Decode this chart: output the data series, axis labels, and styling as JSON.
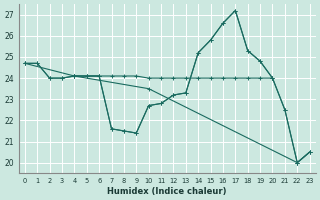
{
  "xlabel": "Humidex (Indice chaleur)",
  "bg_color": "#cce8e0",
  "grid_color": "#ffffff",
  "line_color": "#1a6b60",
  "xlim": [
    -0.5,
    23.5
  ],
  "ylim": [
    19.5,
    27.5
  ],
  "yticks": [
    20,
    21,
    22,
    23,
    24,
    25,
    26,
    27
  ],
  "xticks": [
    0,
    1,
    2,
    3,
    4,
    5,
    6,
    7,
    8,
    9,
    10,
    11,
    12,
    13,
    14,
    15,
    16,
    17,
    18,
    19,
    20,
    21,
    22,
    23
  ],
  "series": [
    {
      "x": [
        0,
        1,
        2,
        3,
        4,
        5,
        6,
        7,
        8,
        9,
        10,
        11,
        12,
        13,
        14,
        15,
        16,
        17,
        18,
        19,
        20
      ],
      "y": [
        24.7,
        24.7,
        24.0,
        24.0,
        24.1,
        24.1,
        24.1,
        24.1,
        24.1,
        24.1,
        24.0,
        24.0,
        24.0,
        24.0,
        24.0,
        24.0,
        24.0,
        24.0,
        24.0,
        24.0,
        24.0
      ]
    },
    {
      "x": [
        0,
        1,
        2,
        3,
        4,
        5,
        6,
        7,
        8,
        9,
        10,
        11,
        12,
        13,
        14,
        15,
        16,
        17,
        18,
        19,
        20,
        21,
        22,
        23
      ],
      "y": [
        24.7,
        24.7,
        24.0,
        24.0,
        24.1,
        24.1,
        24.1,
        21.6,
        21.5,
        21.4,
        22.7,
        22.8,
        23.2,
        23.3,
        25.2,
        25.8,
        26.6,
        27.2,
        25.3,
        24.8,
        24.0,
        22.5,
        20.0,
        20.5
      ]
    },
    {
      "x": [
        0,
        4,
        10,
        22,
        23
      ],
      "y": [
        24.7,
        24.1,
        23.5,
        20.0,
        20.5
      ]
    },
    {
      "x": [
        4,
        5,
        6,
        7,
        8,
        9,
        10,
        11,
        12,
        13,
        14,
        15,
        16,
        17,
        18,
        19,
        20,
        21,
        22,
        23
      ],
      "y": [
        24.1,
        24.1,
        24.1,
        21.6,
        21.5,
        21.4,
        22.7,
        22.8,
        23.2,
        23.3,
        25.2,
        25.8,
        26.6,
        27.2,
        25.3,
        24.8,
        24.0,
        22.5,
        20.0,
        20.5
      ]
    }
  ]
}
